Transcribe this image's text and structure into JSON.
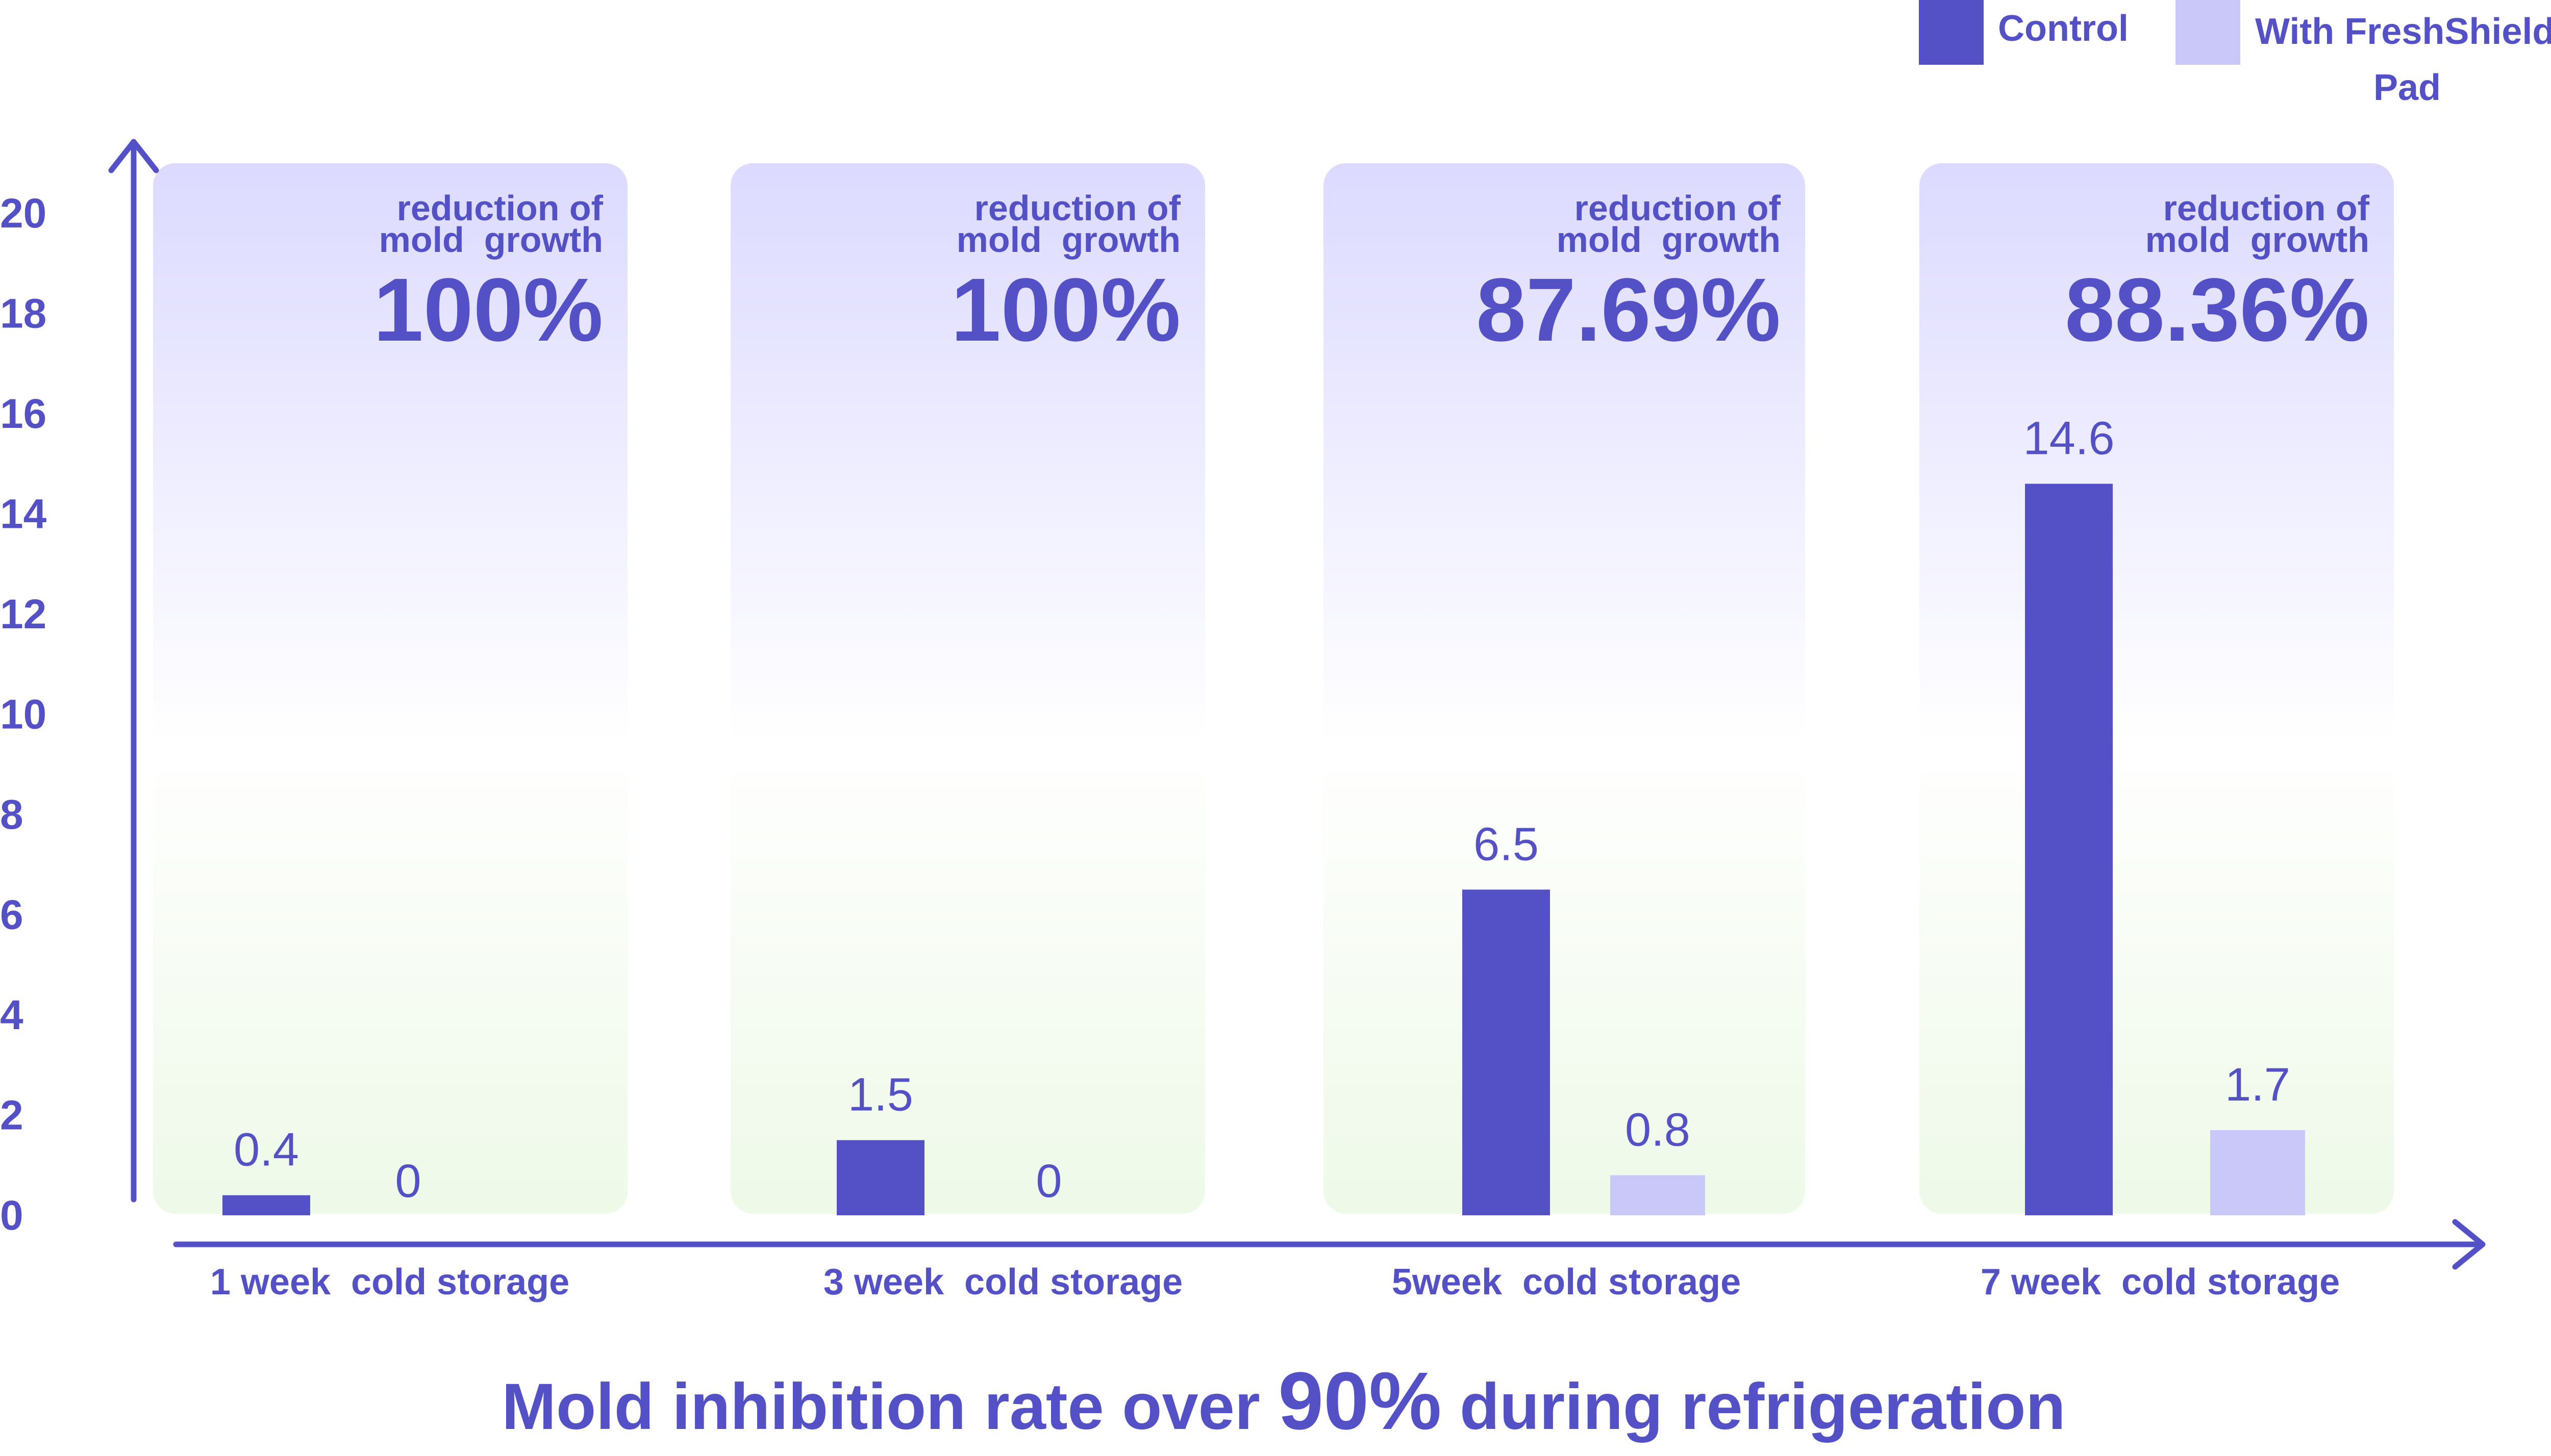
{
  "chart_data": {
    "type": "bar",
    "categories": [
      "1 week  cold storage",
      "3 week  cold storage",
      "5week  cold storage",
      "7 week  cold storage"
    ],
    "series": [
      {
        "name": "Control",
        "values": [
          0.4,
          1.5,
          6.5,
          14.6
        ],
        "color": "#5450c6"
      },
      {
        "name": "With FreshShield Pad",
        "values": [
          0,
          0,
          0.8,
          1.7
        ],
        "color": "#cac8f8"
      }
    ],
    "data_labels": {
      "Control": [
        "0.4",
        "1.5",
        "6.5",
        "14.6"
      ],
      "With FreshShield Pad": [
        "0",
        "0",
        "0.8",
        "1.7"
      ]
    },
    "panel_annotations": [
      {
        "label": "reduction of\nmold  growth",
        "value": "100%"
      },
      {
        "label": "reduction of\nmold  growth",
        "value": "100%"
      },
      {
        "label": "reduction of\nmold  growth",
        "value": "87.69%"
      },
      {
        "label": "reduction of\nmold  growth",
        "value": "88.36%"
      }
    ],
    "y_ticks": [
      "0",
      "2",
      "4",
      "6",
      "8",
      "10",
      "12",
      "14",
      "16",
      "18",
      "20"
    ],
    "ylim": [
      0,
      20
    ],
    "title": "",
    "xlabel": "",
    "ylabel": "",
    "grid": false,
    "legend_position": "top-right",
    "colors": {
      "accent": "#5450c6",
      "light": "#cac8f8",
      "panel_top": "#dcdaff",
      "panel_bottom": "#eef9e8"
    }
  },
  "legend": {
    "control_label": "Control",
    "freshshield_label_line1": "With FreshShield",
    "freshshield_label_line2": "Pad"
  },
  "headline": {
    "prefix": "Mold inhibition rate over ",
    "highlight": "90%",
    "suffix": " during refrigeration"
  }
}
